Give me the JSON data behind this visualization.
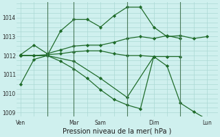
{
  "background_color": "#cff0ee",
  "grid_color": "#aad8d4",
  "line_color": "#1f6b2a",
  "xlabel": "Pression niveau de la mer( hPa )",
  "ylim": [
    1008.8,
    1014.8
  ],
  "yticks": [
    1009,
    1010,
    1011,
    1012,
    1013,
    1014
  ],
  "vline_color": "#4a7a5a",
  "vline_positions": [
    2.0,
    4.0,
    8.0,
    12.0
  ],
  "xtick_labels": [
    "Ven",
    "Mar",
    "Sam",
    "Dim",
    "Lun"
  ],
  "xtick_positions": [
    0.0,
    4.0,
    6.0,
    10.0,
    14.0
  ],
  "xlim": [
    -0.3,
    14.8
  ],
  "series1_x": [
    0,
    1,
    2,
    3,
    4,
    5,
    6,
    7,
    8,
    9,
    10,
    11,
    12,
    13,
    14
  ],
  "series1_y": [
    1010.5,
    1011.8,
    1012.0,
    1013.3,
    1013.9,
    1013.9,
    1013.5,
    1014.1,
    1014.55,
    1014.55,
    1013.5,
    1013.0,
    1013.05,
    1012.9,
    1013.0
  ],
  "series2_x": [
    0,
    1,
    2,
    3,
    4,
    5,
    6,
    7,
    8,
    9,
    10,
    11,
    12
  ],
  "series2_y": [
    1012.05,
    1012.55,
    1012.1,
    1012.3,
    1012.5,
    1012.55,
    1012.55,
    1012.7,
    1012.9,
    1013.0,
    1012.9,
    1013.05,
    1012.9
  ],
  "series3_x": [
    0,
    1,
    2,
    3,
    4,
    5,
    6,
    7,
    8,
    9,
    10,
    11,
    12
  ],
  "series3_y": [
    1012.0,
    1012.0,
    1012.05,
    1012.1,
    1012.2,
    1012.25,
    1012.25,
    1012.1,
    1012.0,
    1012.0,
    1011.95,
    1011.95,
    1011.95
  ],
  "series4_x": [
    0,
    1,
    2,
    3,
    4,
    5,
    6,
    7,
    8,
    9,
    10
  ],
  "series4_y": [
    1012.0,
    1012.0,
    1012.0,
    1011.7,
    1011.3,
    1010.8,
    1010.2,
    1009.7,
    1009.4,
    1009.2,
    1011.95
  ],
  "series5_x": [
    0,
    2,
    4,
    6,
    8,
    10,
    11,
    12,
    13,
    14
  ],
  "series5_y": [
    1012.0,
    1012.0,
    1011.7,
    1010.8,
    1009.8,
    1011.95,
    1011.45,
    1009.5,
    1009.05,
    1008.65
  ]
}
